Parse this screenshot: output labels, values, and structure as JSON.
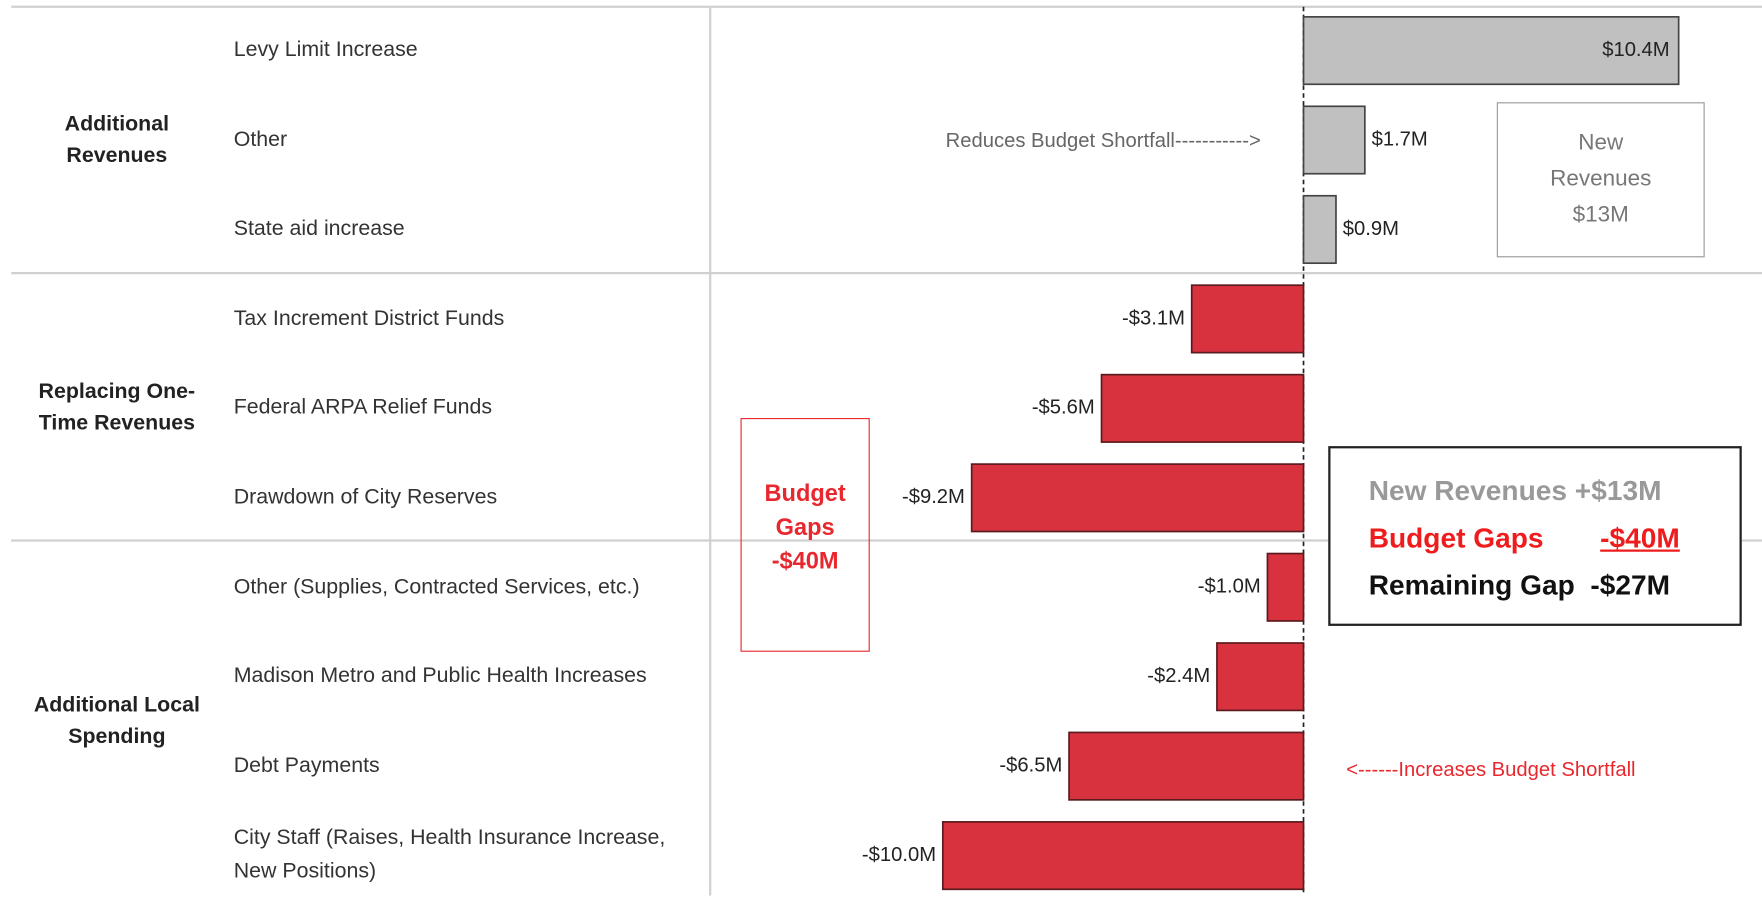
{
  "chart_data": {
    "type": "bar",
    "orientation": "horizontal",
    "positive_color": "#c0c0c0",
    "negative_color": "#d9323f",
    "groups": [
      {
        "name": "Additional Revenues",
        "categories": [
          "Levy Limit Increase",
          "Other",
          "State aid increase"
        ],
        "values": [
          10.4,
          1.7,
          0.9
        ],
        "value_labels": [
          "$10.4M",
          "$1.7M",
          "$0.9M"
        ]
      },
      {
        "name": "Replacing One-Time Revenues",
        "categories": [
          "Tax Increment District Funds",
          "Federal ARPA Relief Funds",
          "Drawdown of City Reserves"
        ],
        "values": [
          -3.1,
          -5.6,
          -9.2
        ],
        "value_labels": [
          "-$3.1M",
          "-$5.6M",
          "-$9.2M"
        ]
      },
      {
        "name": "Additional Local Spending",
        "categories": [
          "Other (Supplies, Contracted Services, etc.)",
          "Madison Metro and Public Health Increases",
          "Debt Payments",
          "City Staff (Raises, Health Insurance Increase, New Positions)"
        ],
        "values": [
          -1.0,
          -2.4,
          -6.5,
          -10.0
        ],
        "value_labels": [
          "-$1.0M",
          "-$2.4M",
          "-$6.5M",
          "-$10.0M"
        ]
      }
    ],
    "annotations": {
      "reduces": "Reduces Budget Shortfall----------->",
      "increases": "<------Increases Budget Shortfall",
      "new_revenues_box": [
        "New",
        "Revenues",
        "$13M"
      ],
      "budget_gaps_box": [
        "Budget",
        "Gaps",
        "-$40M"
      ],
      "summary": [
        {
          "label": "New Revenues",
          "amount": "+$13M"
        },
        {
          "label": "Budget Gaps",
          "amount": "-$40M"
        },
        {
          "label": "Remaining Gap",
          "amount": "-$27M"
        }
      ]
    }
  }
}
